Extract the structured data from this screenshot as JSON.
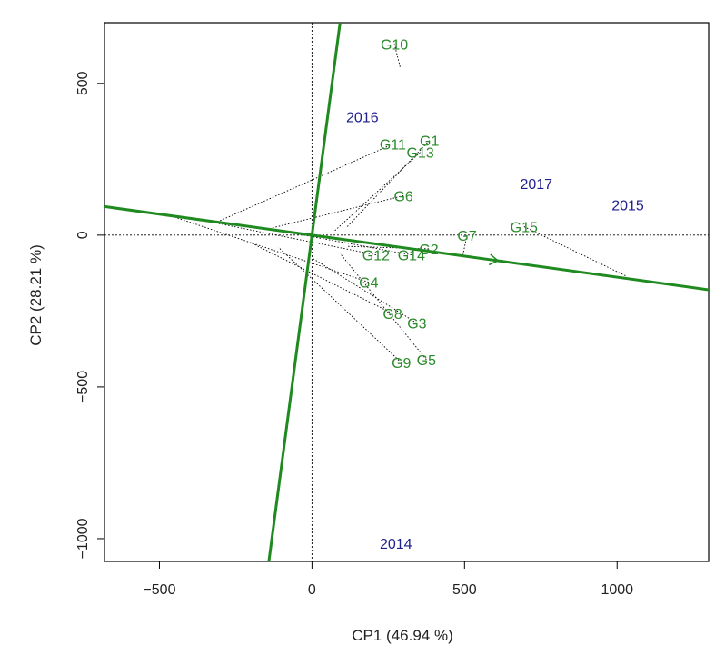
{
  "chart_data": {
    "type": "scatter",
    "subtype": "GGE biplot (mean vs stability)",
    "title": "",
    "xlabel": "CP1 (46.94 %)",
    "ylabel": "CP2 (28.21 %)",
    "xlim": [
      -680,
      1300
    ],
    "ylim": [
      -1075,
      700
    ],
    "xticks": [
      -500,
      0,
      500,
      1000
    ],
    "yticks": [
      -1000,
      -500,
      0,
      500
    ],
    "colors": {
      "genotype": "#2a8a2a",
      "environment": "#1f1f8f",
      "axis_line": "#1f8a1f"
    },
    "genotypes": [
      {
        "name": "G10",
        "x": 270,
        "y": 630,
        "foot": [
          290,
          550
        ]
      },
      {
        "name": "G11",
        "x": 265,
        "y": 300,
        "foot": [
          -305,
          46
        ]
      },
      {
        "name": "G1",
        "x": 385,
        "y": 312,
        "foot": [
          112,
          24
        ]
      },
      {
        "name": "G13",
        "x": 355,
        "y": 273,
        "foot": [
          72,
          12
        ]
      },
      {
        "name": "G6",
        "x": 300,
        "y": 130,
        "foot": [
          -138,
          22
        ]
      },
      {
        "name": "G7",
        "x": 508,
        "y": 0,
        "foot": [
          495,
          -64
        ]
      },
      {
        "name": "G15",
        "x": 695,
        "y": 28,
        "foot": [
          1030,
          -135
        ]
      },
      {
        "name": "G12",
        "x": 210,
        "y": -65,
        "foot": [
          -400,
          57
        ]
      },
      {
        "name": "G4",
        "x": 186,
        "y": -155,
        "foot": [
          -452,
          60
        ]
      },
      {
        "name": "G14",
        "x": 326,
        "y": -65,
        "foot": [
          -92,
          12
        ]
      },
      {
        "name": "G2",
        "x": 383,
        "y": -45,
        "foot": [
          118,
          -37
        ]
      },
      {
        "name": "G8",
        "x": 264,
        "y": -258,
        "foot": [
          -200,
          -25
        ]
      },
      {
        "name": "G3",
        "x": 344,
        "y": -290,
        "foot": [
          0,
          -75
        ]
      },
      {
        "name": "G9",
        "x": 293,
        "y": -420,
        "foot": [
          -110,
          -40
        ]
      },
      {
        "name": "G5",
        "x": 375,
        "y": -410,
        "foot": [
          92,
          -60
        ]
      }
    ],
    "environments": [
      {
        "name": "2016",
        "x": 165,
        "y": 390
      },
      {
        "name": "2017",
        "x": 735,
        "y": 170
      },
      {
        "name": "2015",
        "x": 1035,
        "y": 100
      },
      {
        "name": "2014",
        "x": 275,
        "y": -1015
      }
    ],
    "average_environment_axis": {
      "through": [
        0,
        0
      ],
      "point": [
        1300,
        -180
      ],
      "x_from": -680,
      "x_to": 1300,
      "arrow_at_x": 610
    },
    "orthogonal_axis": {
      "through": [
        0,
        0
      ],
      "point": [
        92,
        700
      ],
      "y_from": -1075,
      "y_to": 700
    },
    "reference_lines": {
      "x0": 0,
      "y0": 0
    }
  }
}
